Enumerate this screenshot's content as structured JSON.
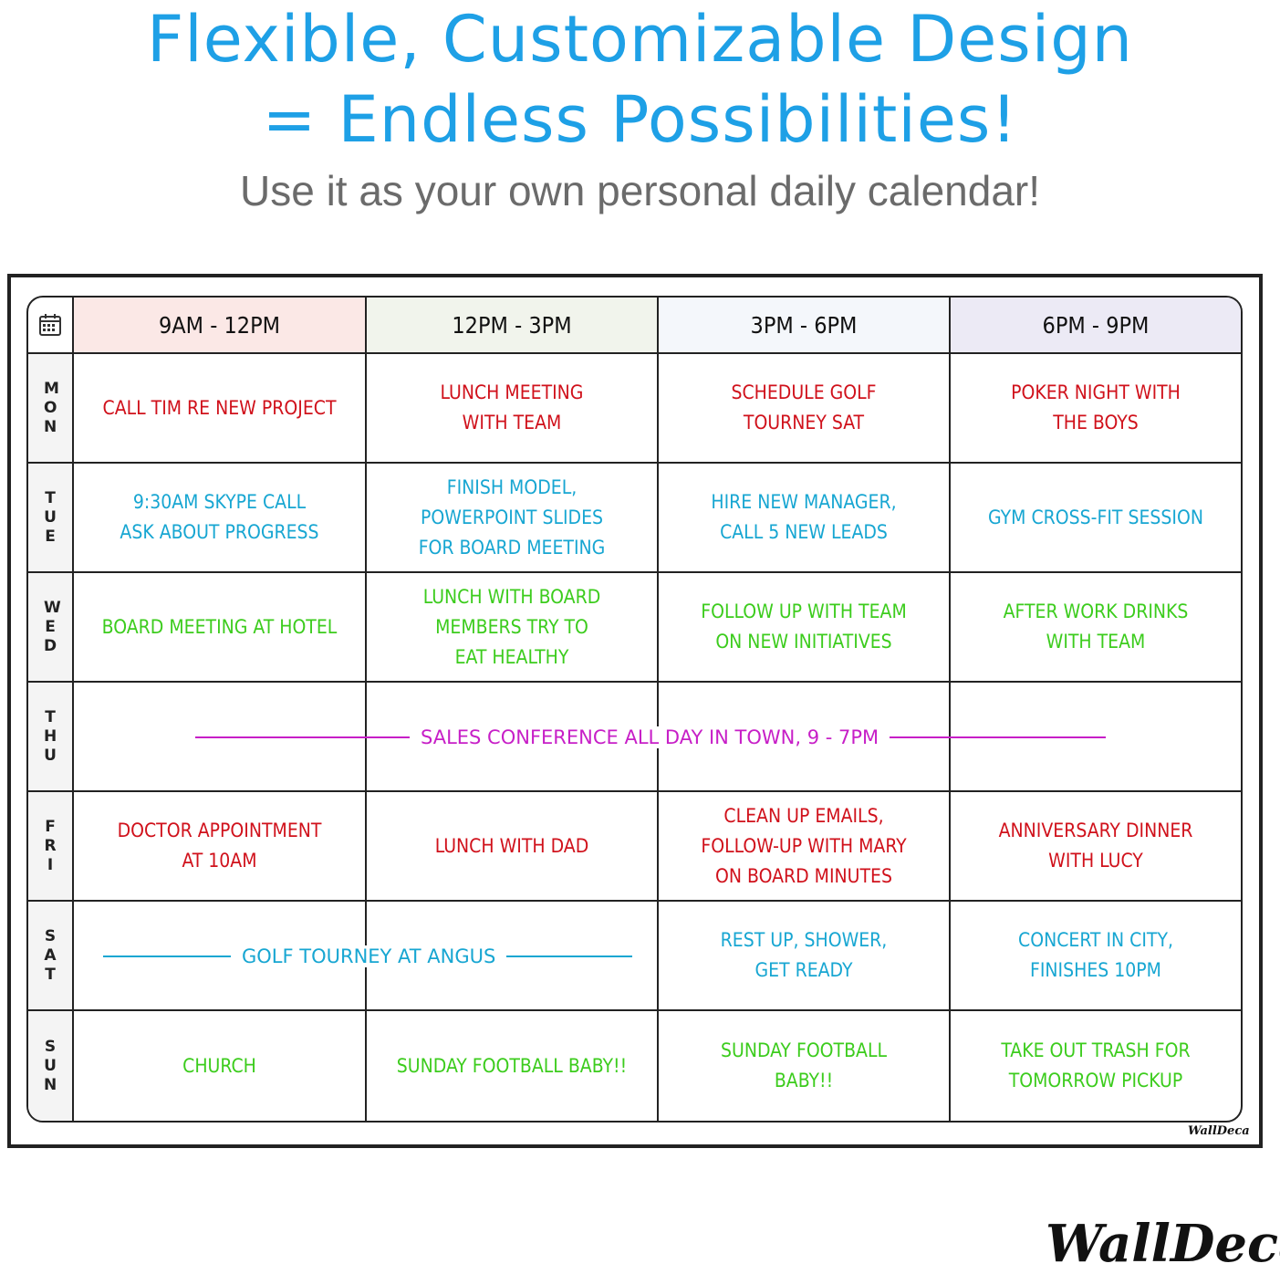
{
  "title_line1": "Flexible, Customizable Design",
  "title_line2": "= Endless Possibilities!",
  "subtitle": "Use it as your own personal daily calendar!",
  "colors": {
    "title": "#1ea0e6",
    "red": "#d0111b",
    "blue": "#17a6d2",
    "green": "#3ccc1d",
    "magenta": "#c71fc7"
  },
  "corner_icon": "calendar-icon",
  "headers": [
    {
      "label": "9AM - 12PM",
      "bg": "#fbe8e6"
    },
    {
      "label": "12PM - 3PM",
      "bg": "#f1f4ec"
    },
    {
      "label": "3PM - 6PM",
      "bg": "#f4f7fb"
    },
    {
      "label": "6PM - 9PM",
      "bg": "#eceaf5"
    }
  ],
  "days": [
    {
      "day": "MON",
      "color": "#d0111b",
      "cells": [
        "CALL TIM RE NEW PROJECT",
        "LUNCH MEETING\nWITH TEAM",
        "SCHEDULE GOLF\nTOURNEY SAT",
        "POKER NIGHT WITH\nTHE BOYS"
      ]
    },
    {
      "day": "TUE",
      "color": "#17a6d2",
      "cells": [
        "9:30AM SKYPE CALL\nASK ABOUT PROGRESS",
        "FINISH MODEL,\nPOWERPOINT SLIDES\nFOR BOARD MEETING",
        "HIRE NEW MANAGER,\nCALL 5 NEW LEADS",
        "GYM CROSS-FIT SESSION"
      ]
    },
    {
      "day": "WED",
      "color": "#3ccc1d",
      "cells": [
        "BOARD MEETING AT HOTEL",
        "LUNCH WITH BOARD\nMEMBERS TRY TO\nEAT HEALTHY",
        "FOLLOW UP WITH TEAM\nON NEW INITIATIVES",
        "AFTER WORK DRINKS\nWITH TEAM"
      ]
    },
    {
      "day": "THU",
      "color": "#c71fc7",
      "cells": [
        "",
        "",
        "",
        ""
      ],
      "span_text": "SALES CONFERENCE ALL DAY IN TOWN, 9 - 7PM"
    },
    {
      "day": "FRI",
      "color": "#d0111b",
      "cells": [
        "DOCTOR APPOINTMENT\nAT 10AM",
        "LUNCH WITH DAD",
        "CLEAN UP EMAILS,\nFOLLOW-UP WITH MARY\nON BOARD MINUTES",
        "ANNIVERSARY DINNER\nWITH LUCY"
      ]
    },
    {
      "day": "SAT",
      "color": "#17a6d2",
      "cells": [
        "",
        "",
        "REST UP, SHOWER,\nGET READY",
        "CONCERT IN CITY,\nFINISHES 10PM"
      ],
      "span_text": "GOLF TOURNEY AT ANGUS"
    },
    {
      "day": "SUN",
      "color": "#3ccc1d",
      "cells": [
        "CHURCH",
        "SUNDAY FOOTBALL BABY!!",
        "SUNDAY FOOTBALL\nBABY!!",
        "TAKE OUT TRASH FOR\nTOMORROW PICKUP"
      ]
    }
  ],
  "board_logo": "WallDeca",
  "brand_logo": "WallDeca"
}
